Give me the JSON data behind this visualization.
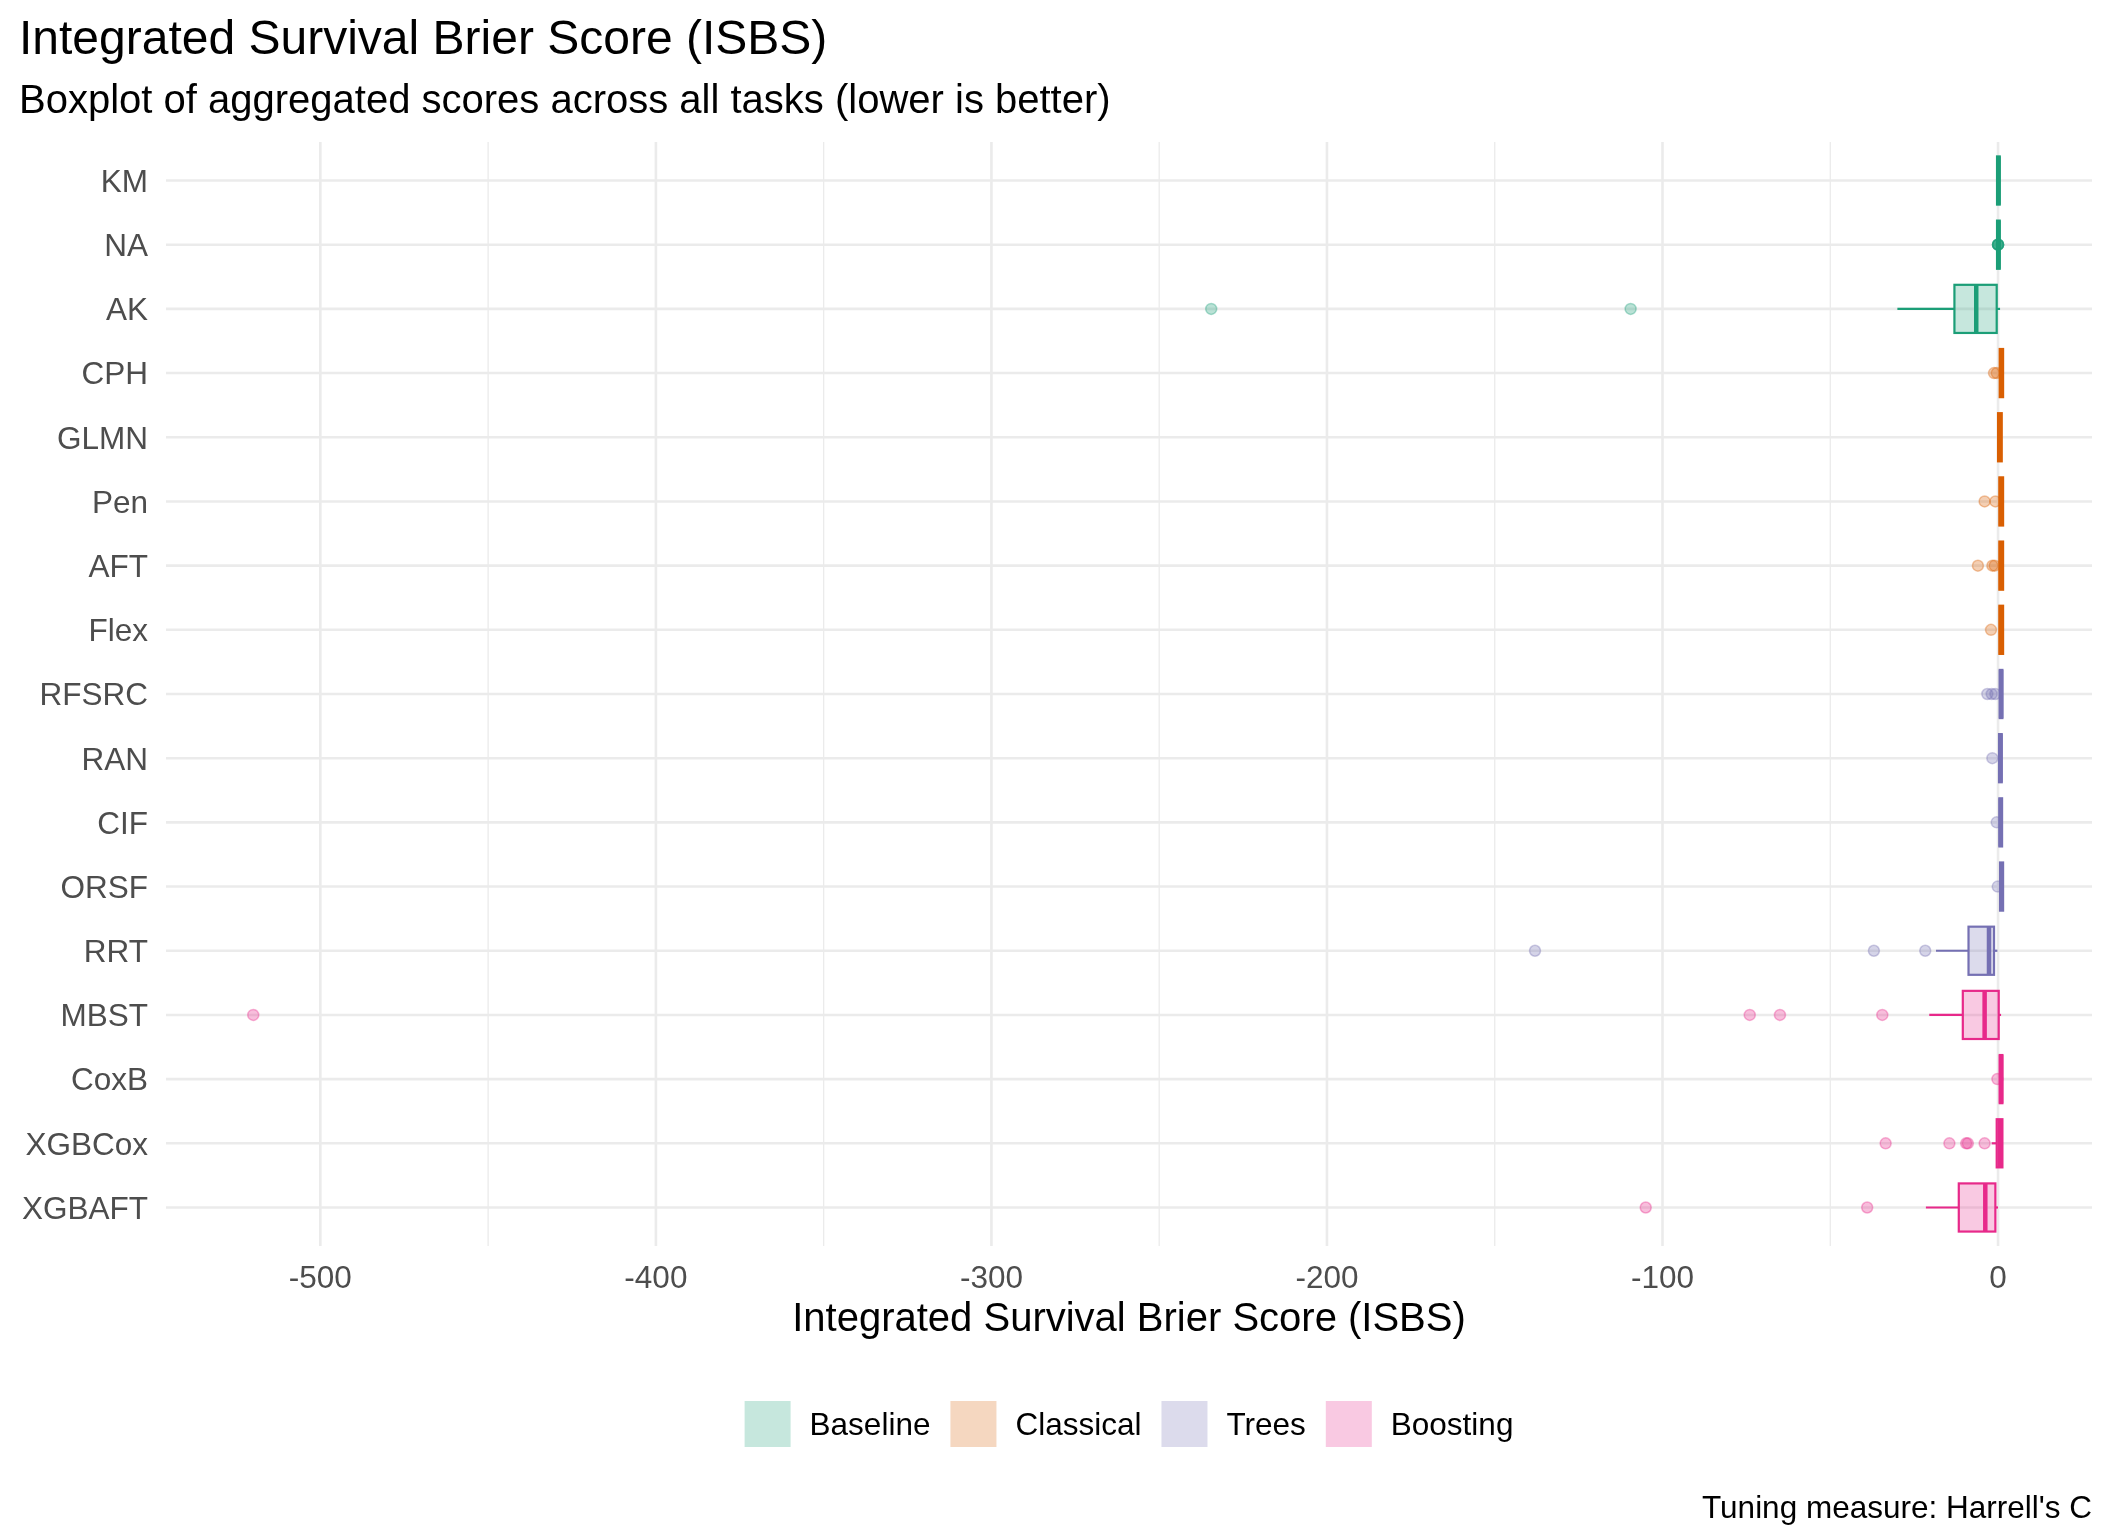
{
  "chart_data": {
    "type": "box",
    "title": "Integrated Survival Brier Score (ISBS)",
    "subtitle": "Boxplot of aggregated scores across all tasks (lower is better)",
    "xlabel": "Integrated Survival Brier Score (ISBS)",
    "orientation": "horizontal",
    "categories": [
      "KM",
      "NA",
      "AK",
      "CPH",
      "GLMN",
      "Pen",
      "AFT",
      "Flex",
      "RFSRC",
      "RAN",
      "CIF",
      "ORSF",
      "RRT",
      "MBST",
      "CoxB",
      "XGBCox",
      "XGBAFT"
    ],
    "series": [
      {
        "name": "Baseline",
        "color": "#1b9e77",
        "boxes": [
          {
            "low": -0.3,
            "q1": -0.3,
            "median": 0.1,
            "q3": 0.5,
            "high": 0.5
          },
          {
            "low": -0.3,
            "q1": -0.3,
            "median": 0.1,
            "q3": 0.5,
            "high": 0.5,
            "outliers": [
              0,
              0,
              0,
              0,
              0
            ]
          },
          {
            "low": -30,
            "q1": -13,
            "median": -6.5,
            "q3": -0.4,
            "high": 0.6,
            "outliers": [
              -234.5,
              -109.5
            ]
          },
          null,
          null,
          null,
          null,
          null,
          null,
          null,
          null,
          null,
          null,
          null,
          null,
          null,
          null
        ]
      },
      {
        "name": "Classical",
        "color": "#d95f02",
        "boxes": [
          null,
          null,
          null,
          {
            "low": 0.5,
            "q1": 0.5,
            "median": 1,
            "q3": 1.5,
            "high": 1.5,
            "outliers": [
              -1.2,
              -0.4
            ]
          },
          {
            "low": 0,
            "q1": 0,
            "median": 0.5,
            "q3": 1.1,
            "high": 1.1
          },
          {
            "low": 0.4,
            "q1": 0.4,
            "median": 0.9,
            "q3": 1.5,
            "high": 1.5,
            "outliers": [
              -4,
              -0.8
            ]
          },
          {
            "low": 0.4,
            "q1": 0.4,
            "median": 0.9,
            "q3": 1.5,
            "high": 1.5,
            "outliers": [
              -6,
              -1.7,
              -1
            ]
          },
          {
            "low": 0.4,
            "q1": 0.4,
            "median": 0.9,
            "q3": 1.5,
            "high": 1.5,
            "outliers": [
              -2.1
            ]
          },
          null,
          null,
          null,
          null,
          null,
          null,
          null,
          null,
          null
        ]
      },
      {
        "name": "Trees",
        "color": "#7570b3",
        "boxes": [
          null,
          null,
          null,
          null,
          null,
          null,
          null,
          null,
          {
            "low": 0.5,
            "q1": 0.5,
            "median": 0.9,
            "q3": 1.3,
            "high": 1.3,
            "outliers": [
              -3.2,
              -1.9,
              -0.8
            ]
          },
          {
            "low": 0.3,
            "q1": 0.3,
            "median": 0.7,
            "q3": 1.1,
            "high": 1.1,
            "outliers": [
              -1.7
            ]
          },
          {
            "low": 0.4,
            "q1": 0.4,
            "median": 0.8,
            "q3": 1.2,
            "high": 1.2,
            "outliers": [
              -0.4
            ]
          },
          {
            "low": 0.6,
            "q1": 0.6,
            "median": 1,
            "q3": 1.5,
            "high": 1.5,
            "outliers": [
              -0.1
            ]
          },
          {
            "low": -18.5,
            "q1": -8.8,
            "median": -2.7,
            "q3": -1.2,
            "high": -0.2,
            "outliers": [
              -138,
              -37,
              -21.7
            ]
          },
          null,
          null,
          null,
          null
        ]
      },
      {
        "name": "Boosting",
        "color": "#e7298a",
        "boxes": [
          null,
          null,
          null,
          null,
          null,
          null,
          null,
          null,
          null,
          null,
          null,
          null,
          null,
          {
            "low": -20.5,
            "q1": -10.5,
            "median": -4,
            "q3": 0.2,
            "high": 0.9,
            "outliers": [
              -520,
              -74,
              -65,
              -34.5
            ]
          },
          {
            "low": 0.5,
            "q1": 0.5,
            "median": 0.9,
            "q3": 1.3,
            "high": 1.3,
            "outliers": [
              -0.2
            ]
          },
          {
            "low": -1.9,
            "q1": -0.4,
            "median": 0.5,
            "q3": 1.3,
            "high": 1.3,
            "outliers": [
              -33.5,
              -14.5,
              -9.5,
              -9,
              -4
            ]
          },
          {
            "low": -21.5,
            "q1": -11.7,
            "median": -3.8,
            "q3": -0.8,
            "high": 0,
            "outliers": [
              -105,
              -39
            ]
          }
        ]
      }
    ],
    "xlim": [
      -546,
      28
    ],
    "xticks": [
      -500,
      {
        "value": -450,
        "label": null
      },
      -400,
      {
        "value": -350,
        "label": null
      },
      -300,
      {
        "value": -250,
        "label": null
      },
      -200,
      {
        "value": -150,
        "label": null
      },
      -100,
      {
        "value": -50,
        "label": null
      },
      0
    ],
    "grid": true,
    "legend": "bottom",
    "annotations": [
      "Tuning measure: Harrell's C"
    ]
  }
}
